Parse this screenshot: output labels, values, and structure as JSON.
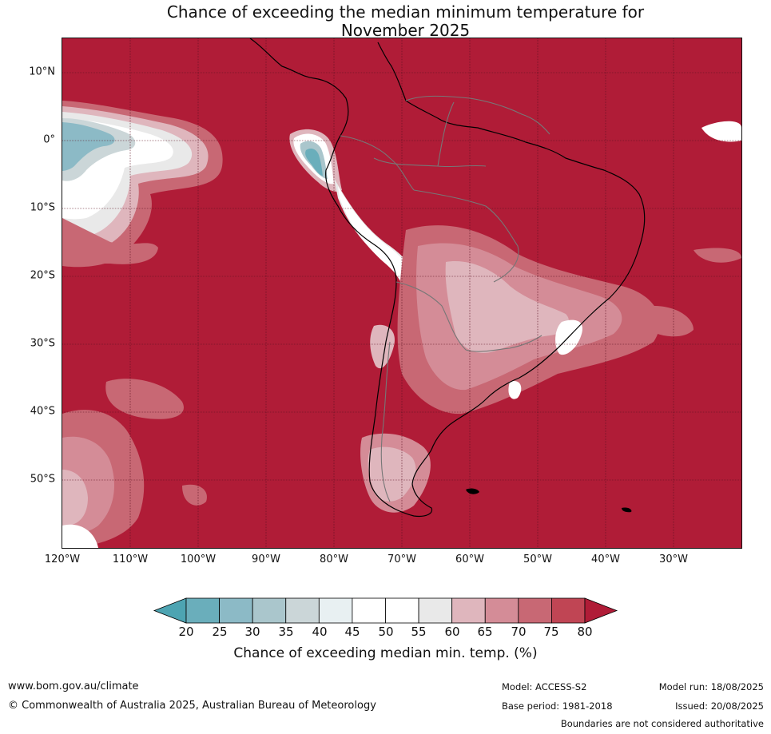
{
  "title_line1": "Chance of exceeding the median minimum temperature for",
  "title_line2": "November 2025",
  "lat_labels": [
    "10°N",
    "0°",
    "10°S",
    "20°S",
    "30°S",
    "40°S",
    "50°S"
  ],
  "lon_labels": [
    "120°W",
    "110°W",
    "100°W",
    "90°W",
    "80°W",
    "70°W",
    "60°W",
    "50°W",
    "40°W",
    "30°W"
  ],
  "colorbar": {
    "ticks": [
      "20",
      "25",
      "30",
      "35",
      "40",
      "45",
      "50",
      "55",
      "60",
      "65",
      "70",
      "75",
      "80"
    ],
    "label": "Chance of exceeding median min. temp. (%)",
    "colors": {
      "below_20": "#4da4b2",
      "c20_25": "#6aaebb",
      "c25_30": "#8cbac6",
      "c30_35": "#aac6cc",
      "c35_40": "#cbd6d8",
      "c40_45": "#e8f0f2",
      "c45_50": "#ffffff",
      "c50_55": "#ffffff",
      "c55_60": "#e9e9e9",
      "c60_65": "#dfb6bd",
      "c65_70": "#d48c97",
      "c70_75": "#c86874",
      "c75_80": "#c04554",
      "above_80": "#b01c37"
    }
  },
  "footer": {
    "website": "www.bom.gov.au/climate",
    "copyright": "© Commonwealth of Australia 2025, Australian Bureau of Meteorology",
    "model": "Model: ACCESS-S2",
    "base_period": "Base period: 1981-2018",
    "model_run": "Model run: 18/08/2025",
    "issued": "Issued: 20/08/2025",
    "boundaries": "Boundaries are not considered authoritative"
  }
}
